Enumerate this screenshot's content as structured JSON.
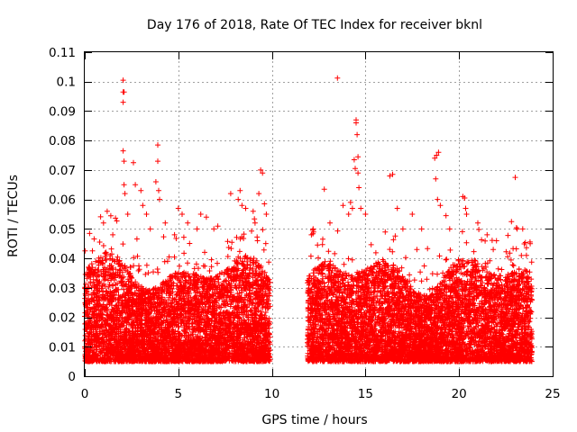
{
  "chart_data": {
    "type": "scatter",
    "title": "Day 176 of 2018, Rate Of TEC Index for receiver bknl",
    "xlabel": "GPS time / hours",
    "ylabel": "ROTI / TECUs",
    "xlim": [
      0,
      25
    ],
    "ylim": [
      0,
      0.11
    ],
    "xticks": [
      0,
      5,
      10,
      15,
      20,
      25
    ],
    "xtick_labels": [
      "0",
      "5",
      "10",
      "15",
      "20",
      "25"
    ],
    "yticks": [
      0,
      0.01,
      0.02,
      0.03,
      0.04,
      0.05,
      0.06,
      0.07,
      0.08,
      0.09,
      0.1,
      0.11
    ],
    "ytick_labels": [
      "0",
      "0.01",
      "0.02",
      "0.03",
      "0.04",
      "0.05",
      "0.06",
      "0.07",
      "0.08",
      "0.09",
      "0.1",
      "0.11"
    ],
    "grid": true,
    "marker": "+",
    "color": "#ff0000",
    "data_segments": [
      {
        "x_start": 0.0,
        "x_end": 9.9,
        "typical_range": [
          0.005,
          0.03
        ]
      },
      {
        "x_start": 11.9,
        "x_end": 23.9,
        "typical_range": [
          0.005,
          0.03
        ]
      }
    ],
    "peak_points": [
      [
        0.2,
        0.037
      ],
      [
        1.0,
        0.052
      ],
      [
        1.2,
        0.056
      ],
      [
        1.5,
        0.048
      ],
      [
        2.05,
        0.1005
      ],
      [
        2.05,
        0.0965
      ],
      [
        2.1,
        0.0965
      ],
      [
        2.05,
        0.093
      ],
      [
        2.05,
        0.0765
      ],
      [
        2.1,
        0.073
      ],
      [
        2.1,
        0.065
      ],
      [
        2.15,
        0.062
      ],
      [
        2.3,
        0.055
      ],
      [
        2.6,
        0.0725
      ],
      [
        2.7,
        0.065
      ],
      [
        3.0,
        0.063
      ],
      [
        3.1,
        0.058
      ],
      [
        3.3,
        0.055
      ],
      [
        3.5,
        0.05
      ],
      [
        3.9,
        0.0785
      ],
      [
        3.9,
        0.073
      ],
      [
        3.8,
        0.066
      ],
      [
        3.95,
        0.063
      ],
      [
        4.0,
        0.06
      ],
      [
        4.3,
        0.052
      ],
      [
        4.8,
        0.048
      ],
      [
        5.0,
        0.057
      ],
      [
        5.2,
        0.055
      ],
      [
        5.5,
        0.052
      ],
      [
        6.0,
        0.05
      ],
      [
        6.2,
        0.055
      ],
      [
        6.5,
        0.054
      ],
      [
        6.9,
        0.05
      ],
      [
        7.8,
        0.062
      ],
      [
        8.2,
        0.06
      ],
      [
        8.3,
        0.063
      ],
      [
        8.4,
        0.058
      ],
      [
        8.6,
        0.057
      ],
      [
        9.0,
        0.056
      ],
      [
        9.1,
        0.052
      ],
      [
        9.3,
        0.062
      ],
      [
        9.4,
        0.07
      ],
      [
        9.5,
        0.069
      ],
      [
        9.6,
        0.0585
      ],
      [
        9.7,
        0.055
      ],
      [
        12.2,
        0.05
      ],
      [
        12.8,
        0.0635
      ],
      [
        13.1,
        0.052
      ],
      [
        13.5,
        0.1012
      ],
      [
        13.8,
        0.058
      ],
      [
        14.1,
        0.055
      ],
      [
        14.2,
        0.059
      ],
      [
        14.3,
        0.057
      ],
      [
        14.4,
        0.0735
      ],
      [
        14.45,
        0.0705
      ],
      [
        14.5,
        0.087
      ],
      [
        14.5,
        0.086
      ],
      [
        14.55,
        0.082
      ],
      [
        14.6,
        0.0745
      ],
      [
        14.6,
        0.069
      ],
      [
        14.65,
        0.064
      ],
      [
        14.75,
        0.057
      ],
      [
        15.0,
        0.055
      ],
      [
        16.3,
        0.068
      ],
      [
        16.45,
        0.0685
      ],
      [
        16.7,
        0.057
      ],
      [
        17.0,
        0.05
      ],
      [
        17.5,
        0.055
      ],
      [
        18.0,
        0.05
      ],
      [
        18.7,
        0.074
      ],
      [
        18.8,
        0.075
      ],
      [
        18.9,
        0.076
      ],
      [
        18.75,
        0.067
      ],
      [
        18.85,
        0.06
      ],
      [
        19.0,
        0.058
      ],
      [
        19.3,
        0.0545
      ],
      [
        19.5,
        0.05
      ],
      [
        20.2,
        0.061
      ],
      [
        20.3,
        0.0605
      ],
      [
        20.35,
        0.057
      ],
      [
        20.4,
        0.055
      ],
      [
        21.0,
        0.052
      ],
      [
        21.5,
        0.048
      ],
      [
        22.0,
        0.046
      ],
      [
        22.8,
        0.0525
      ],
      [
        23.0,
        0.0675
      ],
      [
        23.1,
        0.05
      ],
      [
        23.4,
        0.05
      ],
      [
        23.6,
        0.041
      ],
      [
        23.8,
        0.045
      ]
    ]
  }
}
